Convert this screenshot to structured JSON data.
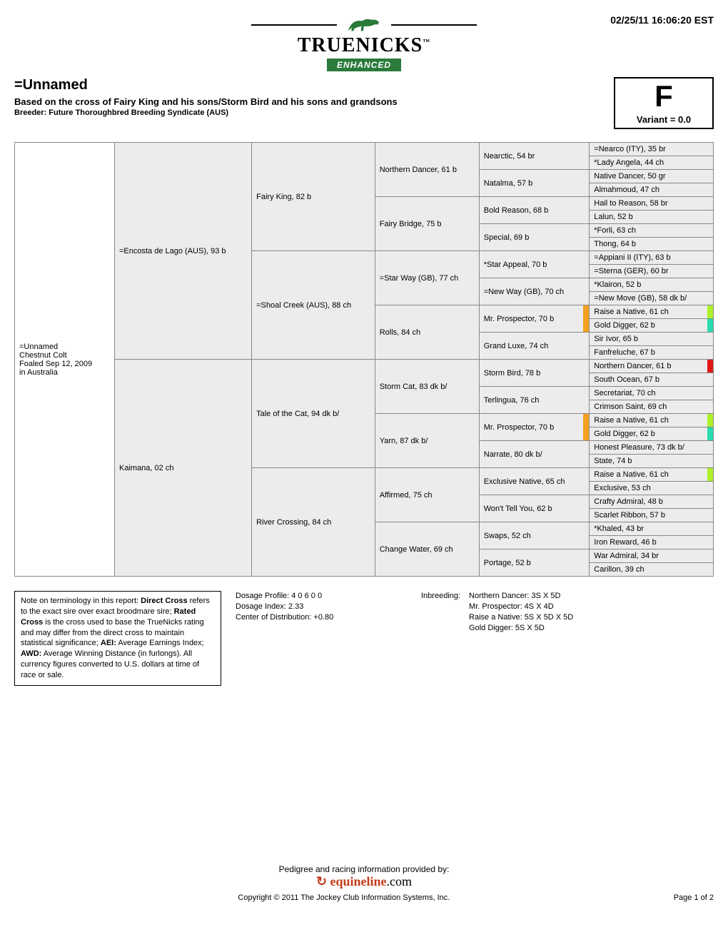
{
  "timestamp": "02/25/11 16:06:20 EST",
  "logo": {
    "main": "TRUENICKS",
    "tm": "™",
    "enhanced": "ENHANCED"
  },
  "title": {
    "name": "=Unnamed",
    "subtitle": "Based on the cross of Fairy King and his sons/Storm Bird and his sons and grandsons",
    "breeder": "Breeder: Future Thoroughbred Breeding Syndicate (AUS)"
  },
  "grade": {
    "letter": "F",
    "variant": "Variant = 0.0"
  },
  "subject": {
    "line1": "=Unnamed",
    "line2": "Chestnut Colt",
    "line3": "Foaled Sep 12, 2009",
    "line4": "in Australia"
  },
  "gen2": [
    "=Encosta de Lago (AUS), 93 b",
    "Kaimana, 02 ch"
  ],
  "gen3": [
    "Fairy King, 82 b",
    "=Shoal Creek (AUS), 88 ch",
    "Tale of the Cat, 94 dk b/",
    "River Crossing, 84 ch"
  ],
  "gen4": [
    "Northern Dancer, 61 b",
    "Fairy Bridge, 75 b",
    "=Star Way (GB), 77 ch",
    "Rolls, 84 ch",
    "Storm Cat, 83 dk b/",
    "Yarn, 87 dk b/",
    "Affirmed, 75 ch",
    "Change Water, 69 ch"
  ],
  "gen5": [
    "Nearctic, 54 br",
    "Natalma, 57 b",
    "Bold Reason, 68 b",
    "Special, 69 b",
    "*Star Appeal, 70 b",
    "=New Way (GB), 70 ch",
    "Mr. Prospector, 70 b",
    "Grand Luxe, 74 ch",
    "Storm Bird, 78 b",
    "Terlingua, 76 ch",
    "Mr. Prospector, 70 b",
    "Narrate, 80 dk b/",
    "Exclusive Native, 65 ch",
    "Won't Tell You, 62 b",
    "Swaps, 52 ch",
    "Portage, 52 b"
  ],
  "gen6": [
    {
      "t": "=Nearco (ITY), 35 br"
    },
    {
      "t": "*Lady Angela, 44 ch"
    },
    {
      "t": "Native Dancer, 50 gr"
    },
    {
      "t": "Almahmoud, 47 ch"
    },
    {
      "t": "Hail to Reason, 58 br"
    },
    {
      "t": "Lalun, 52 b"
    },
    {
      "t": "*Forli, 63 ch"
    },
    {
      "t": "Thong, 64 b"
    },
    {
      "t": "=Appiani II (ITY), 63 b"
    },
    {
      "t": "=Sterna (GER), 60 br"
    },
    {
      "t": "*Klairon, 52 b"
    },
    {
      "t": "=New Move (GB), 58 dk b/"
    },
    {
      "t": "Raise a Native, 61 ch",
      "c": "#aef22a"
    },
    {
      "t": "Gold Digger, 62 b",
      "c": "#2adbb0"
    },
    {
      "t": "Sir Ivor, 65 b"
    },
    {
      "t": "Fanfreluche, 67 b"
    },
    {
      "t": "Northern Dancer, 61 b",
      "c": "#e01818"
    },
    {
      "t": "South Ocean, 67 b"
    },
    {
      "t": "Secretariat, 70 ch"
    },
    {
      "t": "Crimson Saint, 69 ch"
    },
    {
      "t": "Raise a Native, 61 ch",
      "c": "#aef22a"
    },
    {
      "t": "Gold Digger, 62 b",
      "c": "#2adbb0"
    },
    {
      "t": "Honest Pleasure, 73 dk b/"
    },
    {
      "t": "State, 74 b"
    },
    {
      "t": "Raise a Native, 61 ch",
      "c": "#aef22a"
    },
    {
      "t": "Exclusive, 53 ch"
    },
    {
      "t": "Crafty Admiral, 48 b"
    },
    {
      "t": "Scarlet Ribbon, 57 b"
    },
    {
      "t": "*Khaled, 43 br"
    },
    {
      "t": "Iron Reward, 46 b"
    },
    {
      "t": "War Admiral, 34 br"
    },
    {
      "t": "Carillon, 39 ch"
    }
  ],
  "gen5_hl": {
    "6": "#f4a020",
    "10": "#f4a020"
  },
  "notes": {
    "terminology": "Note on terminology in this report: Direct Cross refers to the exact sire over exact broodmare sire; Rated Cross is the cross used to base the TrueNicks rating and may differ from the direct cross to maintain statistical significance; AEI: Average Earnings Index; AWD: Average Winning Distance (in furlongs). All currency figures converted to U.S. dollars at time of race or sale.",
    "dosage_profile": "Dosage Profile: 4 0 6 0 0",
    "dosage_index": "Dosage Index: 2.33",
    "center_dist": "Center of Distribution: +0.80",
    "inbreeding_label": "Inbreeding:",
    "inbreeding_lines": [
      "Northern Dancer: 3S X 5D",
      "Mr. Prospector: 4S X 4D",
      "Raise a Native: 5S X 5D X 5D",
      "Gold Digger: 5S X 5D"
    ]
  },
  "footer": {
    "provided": "Pedigree and racing information provided by:",
    "brand_left": "equineline",
    "brand_right": ".com",
    "copyright": "Copyright © 2011 The Jockey Club Information Systems, Inc.",
    "page": "Page 1 of 2"
  }
}
